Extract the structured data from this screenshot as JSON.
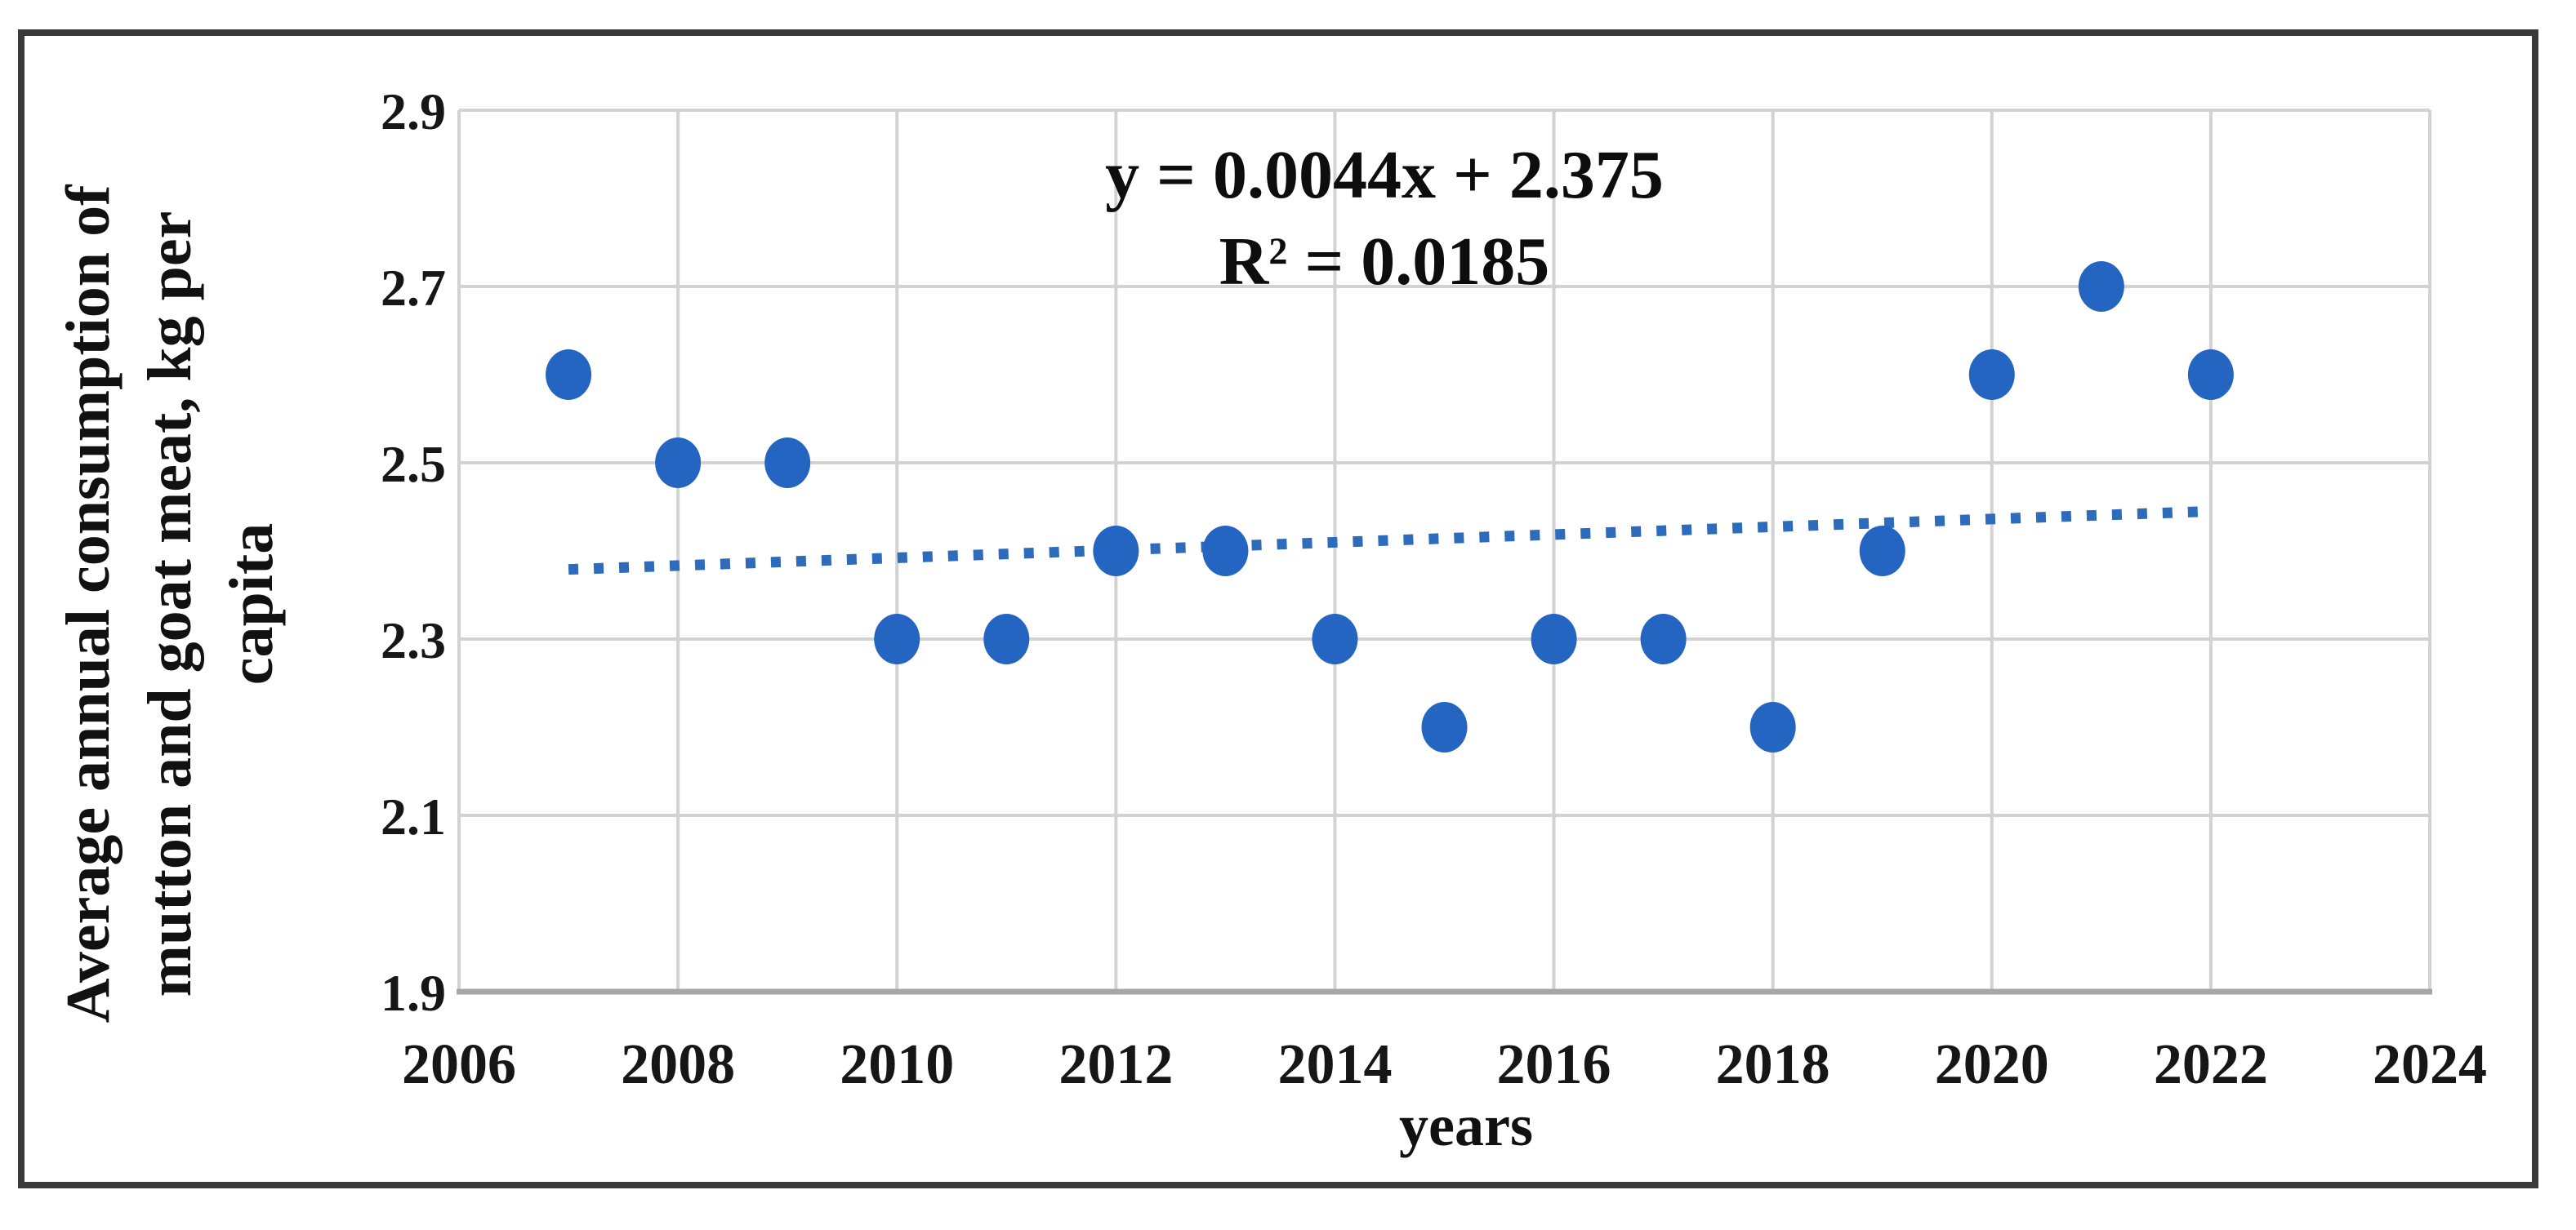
{
  "figure": {
    "background": "#ffffff",
    "border_color": "#3a3a3a"
  },
  "chart_data": {
    "type": "scatter",
    "title": "",
    "xlabel": "years",
    "ylabel": "Average annual consumption of mutton and goat meat, kg per capita",
    "ylabel_lines": [
      "Average annual consumption of",
      "mutton and goat meat, kg per",
      "capita"
    ],
    "xlim": [
      2006,
      2024
    ],
    "ylim": [
      1.9,
      2.9
    ],
    "x_ticks": [
      2006,
      2008,
      2010,
      2012,
      2014,
      2016,
      2018,
      2020,
      2022,
      2024
    ],
    "y_ticks": [
      1.9,
      2.1,
      2.3,
      2.5,
      2.7,
      2.9
    ],
    "grid": true,
    "legend_position": "none",
    "series": [
      {
        "name": "average-annual-consumption",
        "x": [
          2007,
          2008,
          2009,
          2010,
          2011,
          2012,
          2013,
          2014,
          2015,
          2016,
          2017,
          2018,
          2019,
          2020,
          2021,
          2022
        ],
        "y": [
          2.6,
          2.5,
          2.5,
          2.3,
          2.3,
          2.4,
          2.4,
          2.3,
          2.2,
          2.3,
          2.3,
          2.2,
          2.4,
          2.6,
          2.7,
          2.6
        ]
      }
    ],
    "trendline": {
      "equation_label": "y = 0.0044x + 2.375",
      "r2_prefix": "R",
      "r2_sup": "2",
      "r2_rest": " = 0.0185",
      "slope": 0.0044,
      "intercept": 2.375,
      "x_start": 2007,
      "x_end": 2022,
      "y_start": 2.379,
      "y_end": 2.445,
      "style": "dotted"
    },
    "colors": {
      "marker": "#2565c2",
      "trendline": "#2e6bbb",
      "gridline": "#d2d2d2",
      "axis_line": "#a6a6a6",
      "text": "#161616"
    }
  }
}
